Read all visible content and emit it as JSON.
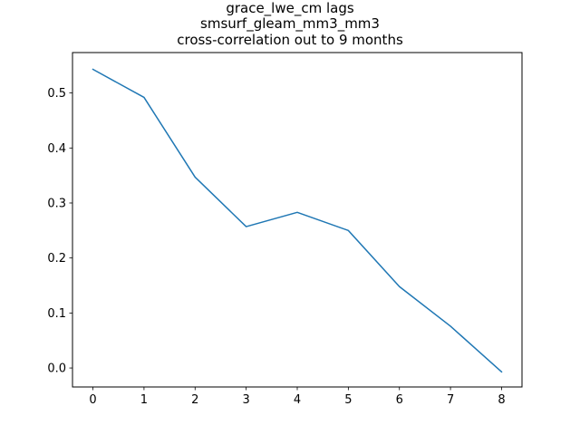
{
  "chart_data": {
    "type": "line",
    "title_lines": [
      "grace_lwe_cm lags",
      "smsurf_gleam_mm3_mm3",
      "cross-correlation out to 9 months"
    ],
    "xlabel": "",
    "ylabel": "",
    "x": [
      0,
      1,
      2,
      3,
      4,
      5,
      6,
      7,
      8
    ],
    "series": [
      {
        "values": [
          0.543,
          0.492,
          0.347,
          0.257,
          0.283,
          0.25,
          0.148,
          0.076,
          -0.007
        ]
      }
    ],
    "xlim": [
      -0.4,
      8.4
    ],
    "ylim": [
      -0.0345,
      0.5735
    ],
    "x_ticks": [
      0,
      1,
      2,
      3,
      4,
      5,
      6,
      7,
      8
    ],
    "x_tick_labels": [
      "0",
      "1",
      "2",
      "3",
      "4",
      "5",
      "6",
      "7",
      "8"
    ],
    "y_ticks": [
      0.0,
      0.1,
      0.2,
      0.3,
      0.4,
      0.5
    ],
    "y_tick_labels": [
      "0.0",
      "0.1",
      "0.2",
      "0.3",
      "0.4",
      "0.5"
    ],
    "grid": false,
    "legend": "none",
    "line_color": "#1f77b4"
  }
}
